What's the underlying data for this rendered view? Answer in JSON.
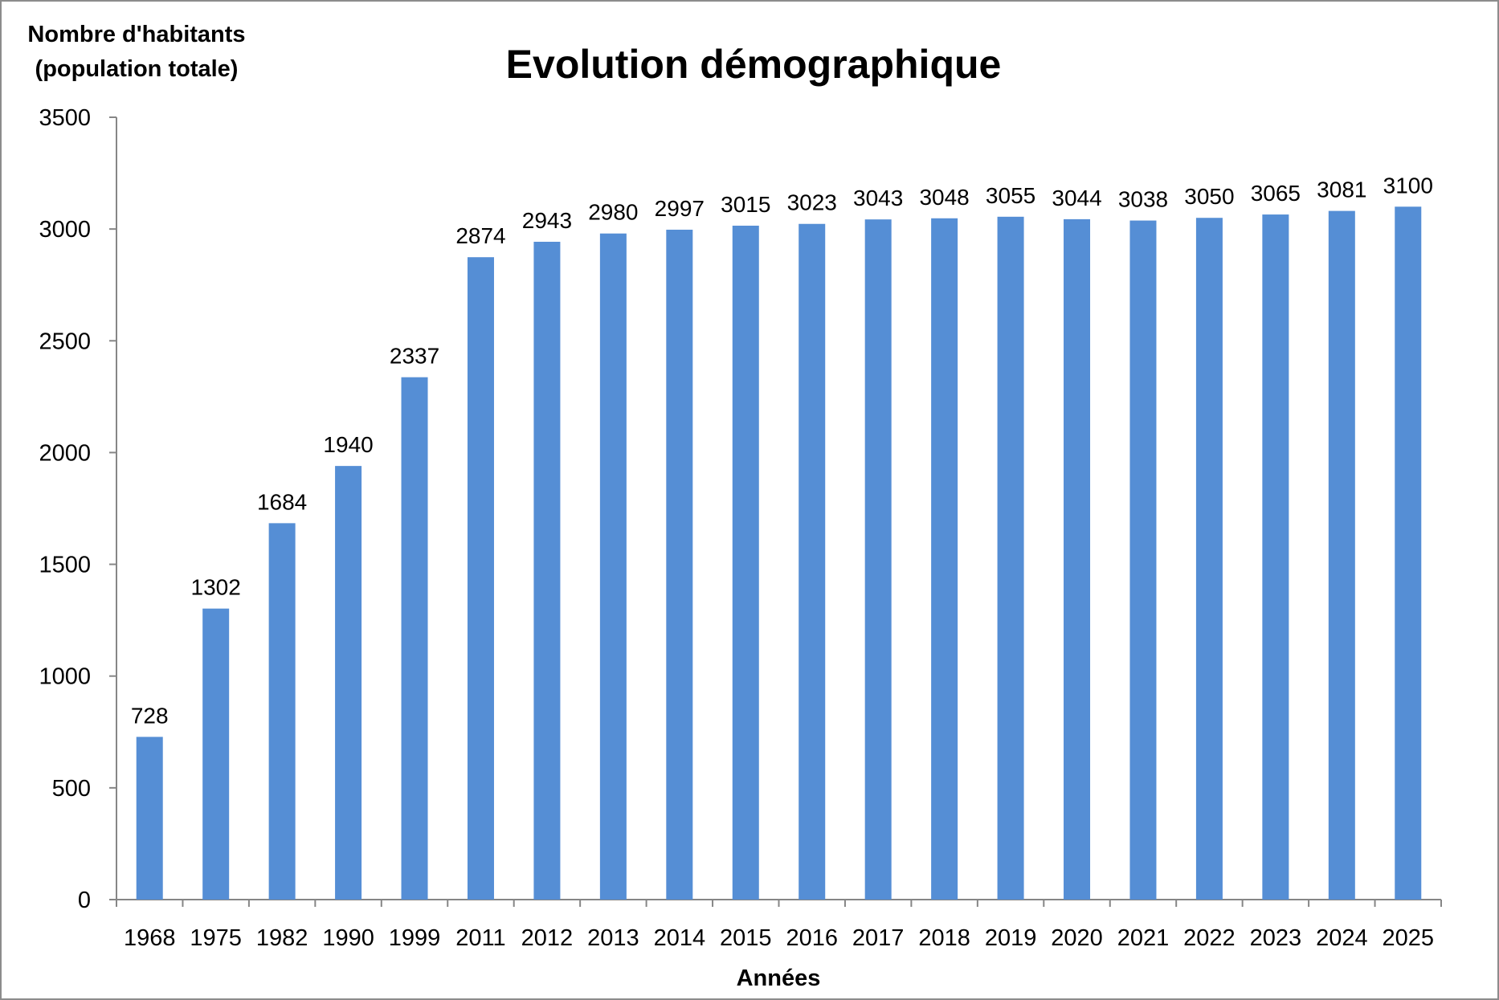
{
  "chart_data": {
    "type": "bar",
    "title": "Evolution démographique",
    "ylabel_lines": [
      "Nombre d'habitants",
      "(population totale)"
    ],
    "xlabel": "Années",
    "categories": [
      "1968",
      "1975",
      "1982",
      "1990",
      "1999",
      "2011",
      "2012",
      "2013",
      "2014",
      "2015",
      "2016",
      "2017",
      "2018",
      "2019",
      "2020",
      "2021",
      "2022",
      "2023",
      "2024",
      "2025"
    ],
    "values": [
      728,
      1302,
      1684,
      1940,
      2337,
      2874,
      2943,
      2980,
      2997,
      3015,
      3023,
      3043,
      3048,
      3055,
      3044,
      3038,
      3050,
      3065,
      3081,
      3100
    ],
    "data_labels": [
      "728",
      "1302",
      "1684",
      "1940",
      "2337",
      "2874",
      "2943",
      "2980",
      "2997",
      "3015",
      "3023",
      "3043",
      "3048",
      "3055",
      "3044",
      "3038",
      "3050",
      "3065",
      "3081",
      "3100"
    ],
    "ylim": [
      0,
      3500
    ],
    "yticks": [
      "0",
      "500",
      "1000",
      "1500",
      "2000",
      "2500",
      "3000",
      "3500"
    ],
    "bar_color": "#558ed5",
    "axis_color": "#868686",
    "grid": false,
    "legend": "none"
  }
}
